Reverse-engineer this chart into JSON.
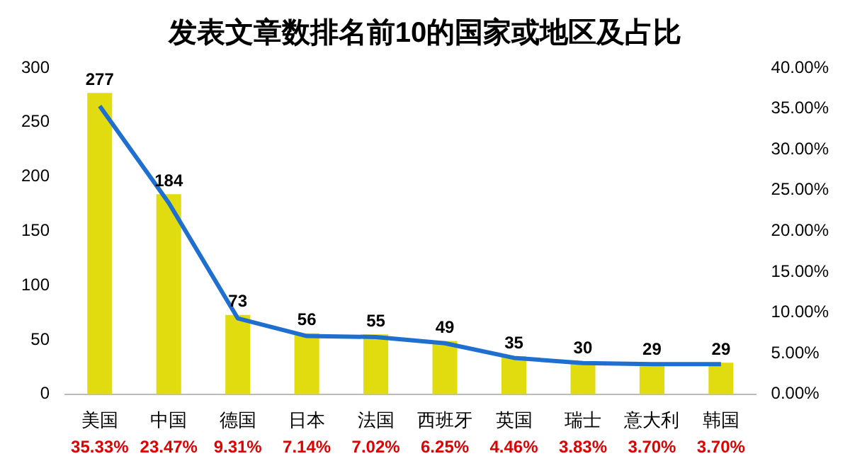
{
  "chart_data": {
    "type": "bar",
    "title": "发表文章数排名前10的国家或地区及占比",
    "categories": [
      "美国",
      "中国",
      "德国",
      "日本",
      "法国",
      "西班牙",
      "英国",
      "瑞士",
      "意大利",
      "韩国"
    ],
    "series": [
      {
        "color": "#e0dc10",
        "values": [
          277,
          184,
          73,
          56,
          55,
          49,
          35,
          30,
          29,
          29
        ]
      },
      {
        "type": "line",
        "axis": "y2",
        "color": "#1f6fd0",
        "values": [
          35.33,
          23.47,
          9.31,
          7.14,
          7.02,
          6.25,
          4.46,
          3.83,
          3.7,
          3.7
        ],
        "value_labels": [
          "35.33%",
          "23.47%",
          "9.31%",
          "7.14%",
          "7.02%",
          "6.25%",
          "4.46%",
          "3.83%",
          "3.70%",
          "3.70%"
        ]
      }
    ],
    "data_labels": true,
    "ylim": [
      0,
      300
    ],
    "yticks": [
      0,
      50,
      100,
      150,
      200,
      250,
      300
    ],
    "y2lim": [
      0,
      40
    ],
    "y2ticks": [
      {
        "value": 0,
        "label": "0.00%"
      },
      {
        "value": 5,
        "label": "5.00%"
      },
      {
        "value": 10,
        "label": "10.00%"
      },
      {
        "value": 15,
        "label": "15.00%"
      },
      {
        "value": 20,
        "label": "20.00%"
      },
      {
        "value": 25,
        "label": "25.00%"
      },
      {
        "value": 30,
        "label": "30.00%"
      },
      {
        "value": 35,
        "label": "35.00%"
      },
      {
        "value": 40,
        "label": "40.00%"
      }
    ],
    "grid": false,
    "legend": false,
    "marker": "none",
    "line_style": "solid"
  }
}
